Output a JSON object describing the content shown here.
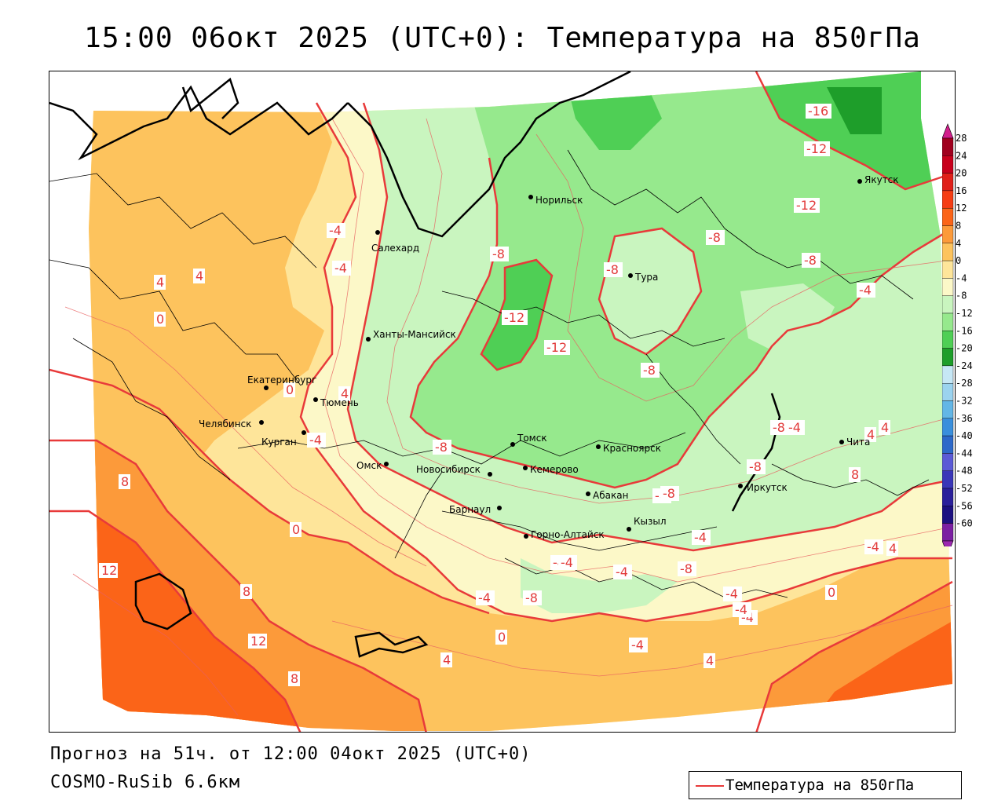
{
  "title": "15:00 06окт 2025 (UTC+0): Температура на 850гПа",
  "forecast_info": "Прогноз на 51ч. от 12:00 04окт 2025 (UTC+0)",
  "model": "COSMO-RuSib 6.6км",
  "legend": {
    "line_label": "Температура на 850гПа",
    "line_color": "#e83a3a"
  },
  "colorbar": {
    "levels": [
      {
        "label": "28",
        "color": "#a0001e"
      },
      {
        "label": "24",
        "color": "#c8001c"
      },
      {
        "label": "20",
        "color": "#e0201a"
      },
      {
        "label": "16",
        "color": "#f53d14"
      },
      {
        "label": "12",
        "color": "#fb6418"
      },
      {
        "label": "8",
        "color": "#fc9a3a"
      },
      {
        "label": "4",
        "color": "#fdc35d"
      },
      {
        "label": "0",
        "color": "#fee59a"
      },
      {
        "label": "-4",
        "color": "#fcf8c8"
      },
      {
        "label": "-8",
        "color": "#c9f5bf"
      },
      {
        "label": "-12",
        "color": "#96e98d"
      },
      {
        "label": "-16",
        "color": "#4fcf55"
      },
      {
        "label": "-20",
        "color": "#1e9e2a"
      },
      {
        "label": "-24",
        "color": "#c6e7f5"
      },
      {
        "label": "-28",
        "color": "#9bd3ef"
      },
      {
        "label": "-32",
        "color": "#63b6e6"
      },
      {
        "label": "-36",
        "color": "#3a8fdc"
      },
      {
        "label": "-40",
        "color": "#2d69c9"
      },
      {
        "label": "-44",
        "color": "#5b5ad6"
      },
      {
        "label": "-48",
        "color": "#3a36b8"
      },
      {
        "label": "-52",
        "color": "#2a1f9a"
      },
      {
        "label": "-56",
        "color": "#1c1080"
      },
      {
        "label": "-60",
        "color": "#7b1fa2"
      }
    ],
    "top_arrow_color": "#d21e8c",
    "bottom_arrow_color": "#9c27b0"
  },
  "cities": [
    {
      "name": "Норильск",
      "lon": 88.2,
      "lat": 69.35
    },
    {
      "name": "Салехард",
      "lon": 66.6,
      "lat": 66.53
    },
    {
      "name": "Якутск",
      "lon": 129.7,
      "lat": 62.03
    },
    {
      "name": "Тура",
      "lon": 100.2,
      "lat": 64.28
    },
    {
      "name": "Ханты-Мансийск",
      "lon": 69.0,
      "lat": 61.0
    },
    {
      "name": "Екатеринбург",
      "lon": 60.6,
      "lat": 56.84
    },
    {
      "name": "Тюмень",
      "lon": 65.5,
      "lat": 57.15
    },
    {
      "name": "Челябинск",
      "lon": 61.4,
      "lat": 55.16
    },
    {
      "name": "Курган",
      "lon": 65.3,
      "lat": 55.45
    },
    {
      "name": "Омск",
      "lon": 73.4,
      "lat": 54.99
    },
    {
      "name": "Новосибирск",
      "lon": 82.9,
      "lat": 55.03
    },
    {
      "name": "Томск",
      "lon": 85.0,
      "lat": 56.5
    },
    {
      "name": "Кемерово",
      "lon": 86.1,
      "lat": 55.35
    },
    {
      "name": "Красноярск",
      "lon": 92.9,
      "lat": 56.0
    },
    {
      "name": "Барнаул",
      "lon": 83.8,
      "lat": 53.35
    },
    {
      "name": "Абакан",
      "lon": 91.4,
      "lat": 53.7
    },
    {
      "name": "Горно-Алтайск",
      "lon": 85.96,
      "lat": 51.96
    },
    {
      "name": "Кызыл",
      "lon": 94.4,
      "lat": 51.7
    },
    {
      "name": "Иркутск",
      "lon": 104.3,
      "lat": 52.3
    },
    {
      "name": "Чита",
      "lon": 113.5,
      "lat": 52.03
    }
  ],
  "isotherm_labels": [
    "-16",
    "-12",
    "-12",
    "-8",
    "-8",
    "-8",
    "-4",
    "-4",
    "-8",
    "-12",
    "-12",
    "-8",
    "-8",
    "-4",
    "0",
    "4",
    "4",
    "4",
    "0",
    "-4",
    "-8",
    "4",
    "8",
    "12",
    "8",
    "12",
    "8",
    "0",
    "-4",
    "-8",
    "-4",
    "-8",
    "-4",
    "-4",
    "0",
    "4",
    "8",
    "-4",
    "-4",
    "0",
    "4",
    "4",
    "-8",
    "-4",
    "-8",
    "-4",
    "4",
    "-4",
    "-4",
    "-8",
    "-4"
  ]
}
